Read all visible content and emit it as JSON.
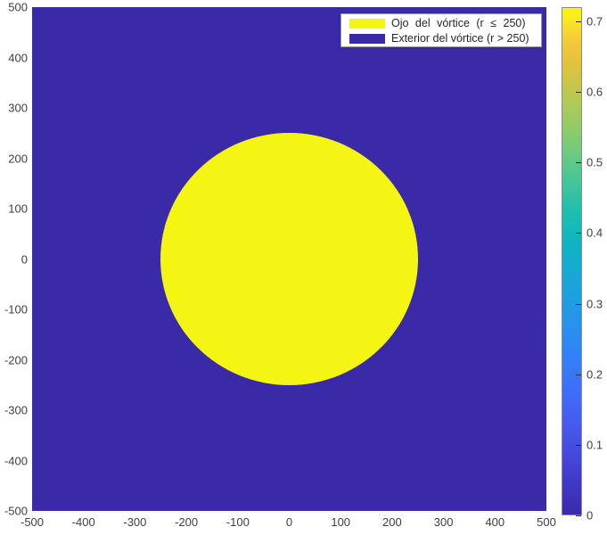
{
  "figure": {
    "plot": {
      "field_color": "#3A2AA8",
      "eye_color": "#F5F513"
    },
    "axes": {
      "x_ticks": [
        "-500",
        "-400",
        "-300",
        "-200",
        "-100",
        "0",
        "100",
        "200",
        "300",
        "400",
        "500"
      ],
      "y_ticks": [
        "500",
        "400",
        "300",
        "200",
        "100",
        "0",
        "-100",
        "-200",
        "-300",
        "-400",
        "-500"
      ]
    },
    "legend": {
      "items": [
        {
          "label": "Ojo del vórtice (r ≤ 250)",
          "color": "#F5F513"
        },
        {
          "label": "Exterior del vórtice (r > 250)",
          "color": "#3A2AA8"
        }
      ]
    },
    "colorbar": {
      "tick_labels": [
        "0.7",
        "0.6",
        "0.5",
        "0.4",
        "0.3",
        "0.2",
        "0.1",
        "0"
      ],
      "min": 0,
      "max": 0.72,
      "colormap": "parula"
    }
  },
  "chart_data": {
    "type": "heatmap",
    "title": "",
    "xlabel": "",
    "ylabel": "",
    "xlim": [
      -500,
      500
    ],
    "ylim": [
      -500,
      500
    ],
    "x_tick_values": [
      -500,
      -400,
      -300,
      -200,
      -100,
      0,
      100,
      200,
      300,
      400,
      500
    ],
    "y_tick_values": [
      500,
      400,
      300,
      200,
      100,
      0,
      -100,
      -200,
      -300,
      -400,
      -500
    ],
    "grid": false,
    "legend_position": "top-right",
    "legend_entries": [
      "Ojo del vórtice (r ≤ 250)",
      "Exterior del vórtice (r > 250)"
    ],
    "colormap": "parula",
    "colorbar_range": [
      0,
      0.72
    ],
    "colorbar_tick_values": [
      0,
      0.1,
      0.2,
      0.3,
      0.4,
      0.5,
      0.6,
      0.7
    ],
    "regions": [
      {
        "name": "Ojo del vórtice",
        "condition": "r <= 250",
        "shape": "circle",
        "center": [
          0,
          0
        ],
        "radius": 250,
        "value": 0.7,
        "color": "#F5F513"
      },
      {
        "name": "Exterior del vórtice",
        "condition": "r > 250",
        "shape": "background",
        "value": 0,
        "color": "#3A2AA8"
      }
    ]
  }
}
